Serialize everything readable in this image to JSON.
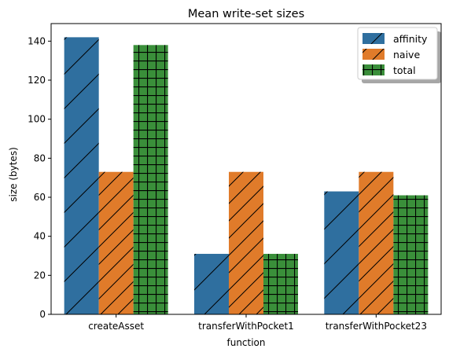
{
  "chart_data": {
    "type": "bar",
    "title": "Mean write-set sizes",
    "xlabel": "function",
    "ylabel": "size (bytes)",
    "categories": [
      "createAsset",
      "transferWithPocket1",
      "transferWithPocket23"
    ],
    "ylim": [
      0,
      149
    ],
    "yticks": [
      0,
      20,
      40,
      60,
      80,
      100,
      120,
      140
    ],
    "grid": false,
    "legend_position": "top-right",
    "series": [
      {
        "name": "affinity",
        "values": [
          142,
          31,
          63
        ],
        "color": "#2f6f9f",
        "hatch": "diagonal"
      },
      {
        "name": "naive",
        "values": [
          73,
          73,
          73
        ],
        "color": "#e07b2a",
        "hatch": "diagonal-dense"
      },
      {
        "name": "total",
        "values": [
          138,
          31,
          61
        ],
        "color": "#3a8f3a",
        "hatch": "grid"
      }
    ]
  }
}
